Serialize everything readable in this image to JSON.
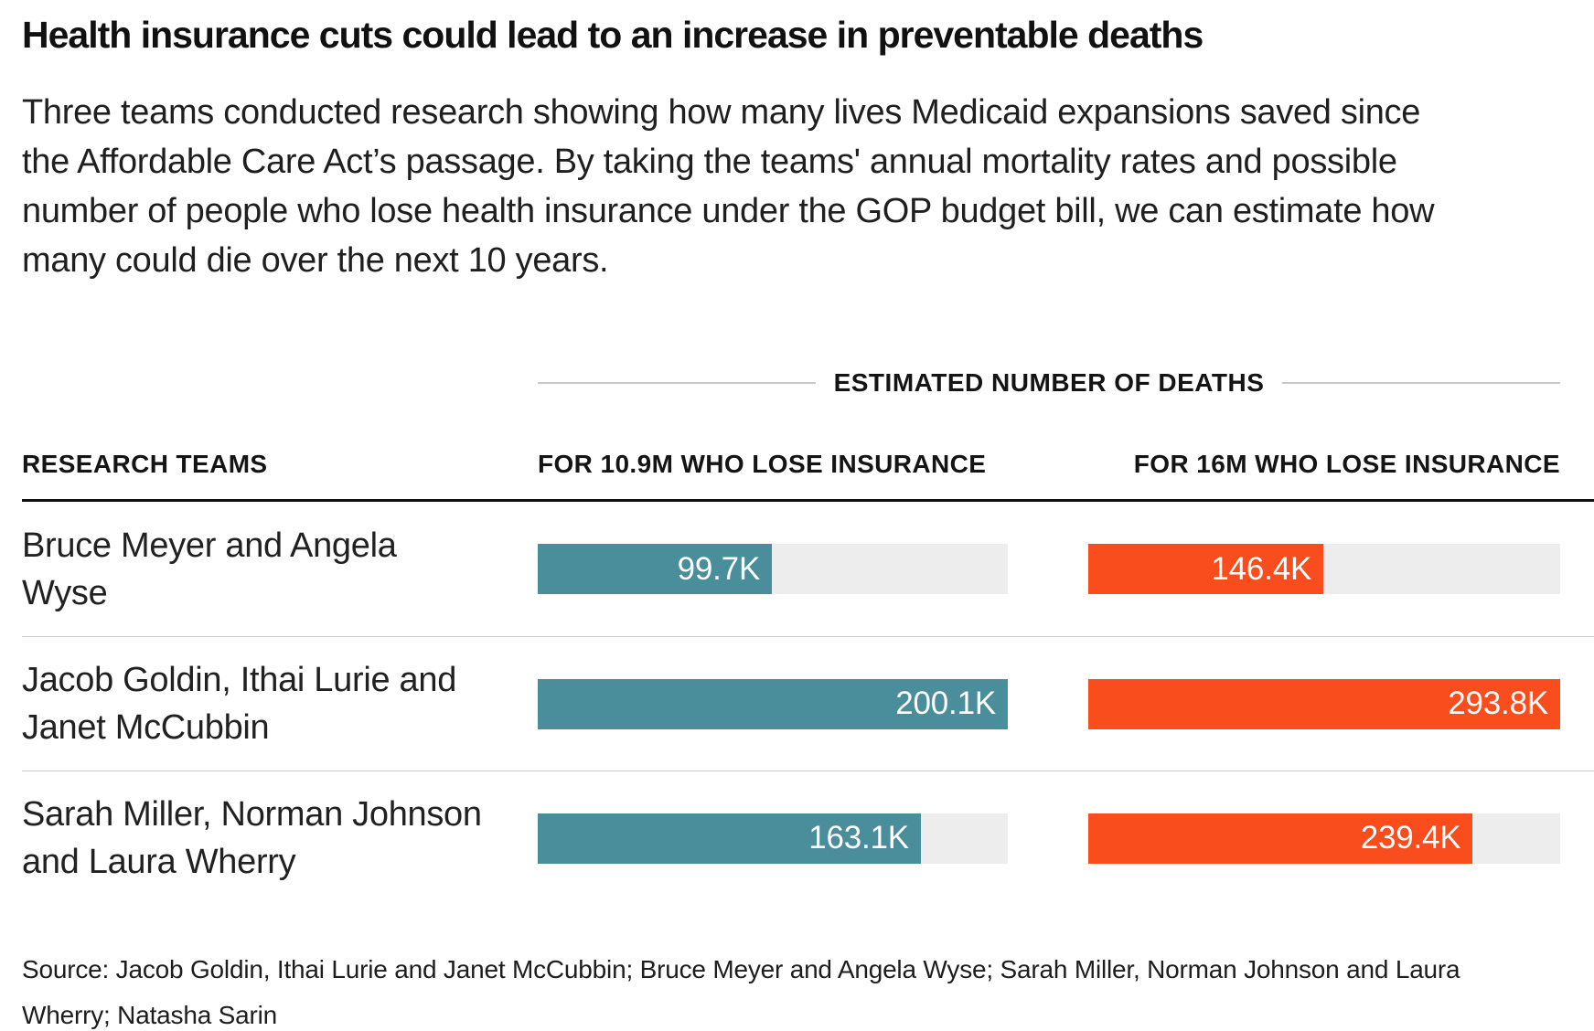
{
  "title": "Health insurance cuts could lead to an increase in preventable deaths",
  "description": "Three teams conducted research showing how many lives Medicaid expansions saved since the Affordable Care Act’s passage. By taking the teams' annual mortality rates and possible number of people who lose health insurance under the GOP budget bill, we can estimate how many could die over the next 10 years.",
  "chart_data": {
    "type": "bar",
    "orientation": "horizontal",
    "title": "Health insurance cuts could lead to an increase in preventable deaths",
    "group_header": "ESTIMATED NUMBER OF DEATHS",
    "categories_label": "RESEARCH TEAMS",
    "categories": [
      "Bruce Meyer and Angela Wyse",
      "Jacob Goldin, Ithai Lurie and Janet McCubbin",
      "Sarah Miller, Norman Johnson and Laura Wherry"
    ],
    "series": [
      {
        "name": "FOR 10.9M WHO LOSE INSURANCE",
        "values": [
          99700,
          200100,
          163100
        ],
        "labels": [
          "99.7K",
          "200.1K",
          "163.1K"
        ],
        "color": "#4a8e9b",
        "axis_max": 200100
      },
      {
        "name": "FOR 16M WHO LOSE INSURANCE",
        "values": [
          146400,
          293800,
          239400
        ],
        "labels": [
          "146.4K",
          "293.8K",
          "239.4K"
        ],
        "color": "#fa4d1e",
        "axis_max": 293800
      }
    ],
    "colors": {
      "track": "#ededed",
      "teal": "#4a8e9b",
      "orange": "#fa4d1e"
    },
    "legend_position": "column-headers",
    "grid": false
  },
  "source": "Source: Jacob Goldin, Ithai Lurie and Janet McCubbin; Bruce Meyer and Angela Wyse; Sarah Miller, Norman Johnson and Laura Wherry; Natasha Sarin"
}
